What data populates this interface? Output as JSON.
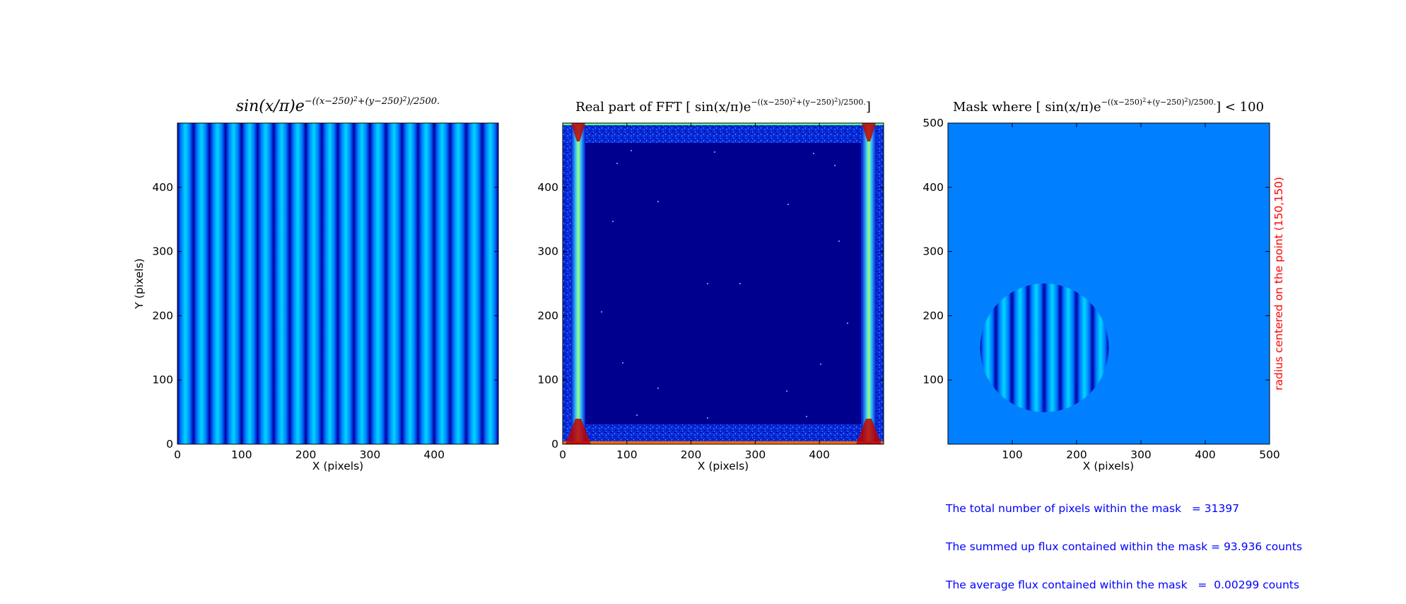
{
  "chart_data": [
    {
      "type": "heatmap",
      "title_parts": [
        "sin(x/π)e",
        "−((x−250)",
        "2",
        "+(y−250)",
        "2",
        ")/2500."
      ],
      "xlabel": "X (pixels)",
      "ylabel": "Y (pixels)",
      "xlim": [
        0,
        500
      ],
      "ylim": [
        0,
        500
      ],
      "xticks": [
        "0",
        "100",
        "200",
        "300",
        "400"
      ],
      "yticks": [
        "0",
        "100",
        "200",
        "300",
        "400"
      ],
      "pattern": "vertical sinusoidal stripes",
      "colormap": "jet",
      "colors": {
        "stripe_dark": "#0000a8",
        "stripe_mid": "#0078ff",
        "stripe_light": "#00d8ff"
      }
    },
    {
      "type": "heatmap",
      "title_parts": [
        "Real part of FFT [ sin(x/π)e",
        "−((x−250)",
        "2",
        "+(y−250)",
        "2",
        ")/2500.",
        "]"
      ],
      "xlabel": "X (pixels)",
      "ylabel": "",
      "xlim": [
        0,
        500
      ],
      "ylim": [
        0,
        500
      ],
      "xticks": [
        "0",
        "100",
        "200",
        "300",
        "400"
      ],
      "yticks": [
        "0",
        "100",
        "200",
        "300",
        "400"
      ],
      "pattern": "dark blue background with bright vertical lines near x=25 and x=475 and noisy bright border",
      "colormap": "jet",
      "colors": {
        "background": "#00008f",
        "noise": "#0a3cff",
        "line": "#8cff70",
        "hot": "#ff2000"
      }
    },
    {
      "type": "heatmap",
      "title_parts": [
        "Mask where [ sin(x/π)e",
        "−((x−250)",
        "2",
        "+(y−250)",
        "2",
        ")/2500.",
        "] < 100"
      ],
      "xlabel": "X (pixels)",
      "ylabel": "",
      "side_label": "radius centered on the point (150,150)",
      "xlim": [
        0,
        500
      ],
      "ylim": [
        0,
        500
      ],
      "xticks": [
        "100",
        "200",
        "300",
        "400",
        "500"
      ],
      "yticks": [
        "100",
        "200",
        "300",
        "400",
        "500"
      ],
      "mask_circle": {
        "cx": 150,
        "cy": 150,
        "r": 100
      },
      "pattern": "flat background with striped disc",
      "colormap": "jet",
      "colors": {
        "background": "#0080ff",
        "side_label": "#ff0000"
      }
    }
  ],
  "stats": {
    "line1": "The total number of pixels within the mask   = 31397",
    "line2": "The summed up flux contained within the mask = 93.936 counts",
    "line3": "The average flux contained within the mask   =  0.00299 counts"
  }
}
